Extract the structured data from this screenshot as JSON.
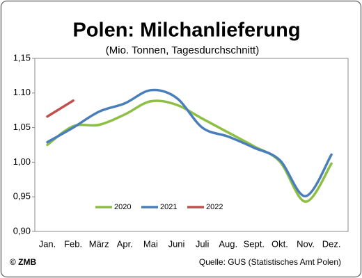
{
  "chart_data": {
    "type": "line",
    "title": "Polen: Milchanlieferung",
    "subtitle": "(Mio. Tonnen, Tagesdurchschnitt)",
    "categories": [
      "Jan.",
      "Feb.",
      "März",
      "Apr.",
      "Mai",
      "Juni",
      "Juli",
      "Aug.",
      "Sept.",
      "Okt.",
      "Nov.",
      "Dez."
    ],
    "series": [
      {
        "name": "2020",
        "color": "#8dbf44",
        "values": [
          1.025,
          1.052,
          1.054,
          1.069,
          1.088,
          1.083,
          1.063,
          1.043,
          1.023,
          1.001,
          0.943,
          0.998
        ]
      },
      {
        "name": "2021",
        "color": "#4a7ebb",
        "values": [
          1.029,
          1.05,
          1.073,
          1.085,
          1.104,
          1.093,
          1.05,
          1.037,
          1.021,
          1.003,
          0.951,
          1.011
        ]
      },
      {
        "name": "2022",
        "color": "#c0504d",
        "values": [
          1.066,
          1.089,
          null,
          null,
          null,
          null,
          null,
          null,
          null,
          null,
          null,
          null
        ]
      }
    ],
    "ylim": [
      0.9,
      1.15
    ],
    "yticks": [
      {
        "value": 0.9,
        "label": "0,90"
      },
      {
        "value": 0.95,
        "label": "0,95"
      },
      {
        "value": 1.0,
        "label": "1,00"
      },
      {
        "value": 1.05,
        "label": "1,05"
      },
      {
        "value": 1.1,
        "label": "1.10"
      },
      {
        "value": 1.15,
        "label": "1,15"
      }
    ],
    "copyright": "© ZMB",
    "source": "Quelle:  GUS (Statistisches Amt Polen)"
  }
}
